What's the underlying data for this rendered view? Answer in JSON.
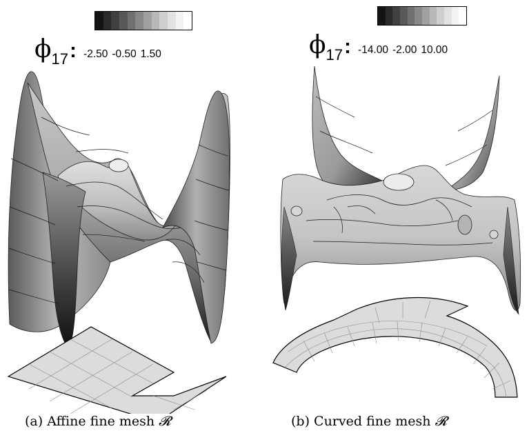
{
  "colors": {
    "colorbar": [
      "#141414",
      "#2a2a2a",
      "#404040",
      "#585858",
      "#707070",
      "#888888",
      "#a0a0a0",
      "#b8b8b8",
      "#cfcfcf",
      "#e2e2e2",
      "#f3f3f3",
      "#ffffff"
    ],
    "surface_dark": "#1a1a1a",
    "surface_light": "#e6e6e6",
    "mesh_fill": "#dcdcdc"
  },
  "panel_a": {
    "symbol": "ϕ",
    "subscript": "17",
    "separator": ":",
    "ticks": [
      "-2.50",
      "-0.50",
      "1.50"
    ],
    "caption_prefix": "(a) Affine fine mesh",
    "caption_symbol": "𝓡"
  },
  "panel_b": {
    "symbol": "ϕ",
    "subscript": "17",
    "separator": ":",
    "ticks": [
      "-14.00",
      "-2.00",
      "10.00"
    ],
    "caption_prefix": "(b) Curved fine mesh",
    "caption_symbol": "𝓡"
  }
}
